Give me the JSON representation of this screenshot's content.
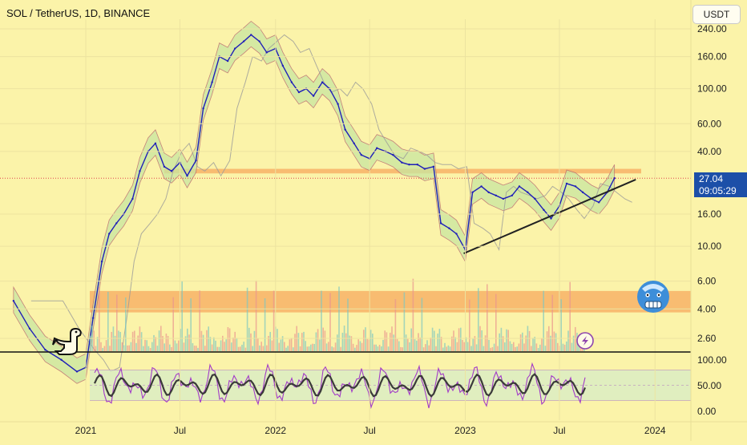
{
  "header": {
    "title": "SOL / TetherUS, 1D, BINANCE"
  },
  "toolbar": {
    "currency_label": "USDT"
  },
  "price_tag": {
    "price": "27.04",
    "countdown": "09:05:29"
  },
  "colors": {
    "background": "#fbf3a9",
    "price_line": "#1f1fb8",
    "cloud_fill": "#c9e6a0",
    "cloud_border": "#b35b6b",
    "zone": "#f7b267",
    "trendline": "#222222",
    "rsi_line": "#a23bc8",
    "rsi_smooth": "#3a3a3a",
    "price_tag_bg": "#1c4fa8"
  },
  "icons": {
    "logo": "dinosaur-icon",
    "lightning": "lightning-icon",
    "emoji": "cold-face-emoji-icon"
  },
  "chart_data": [
    {
      "type": "line",
      "series": [
        {
          "x": [
            "2020-08-15",
            "2020-09-15",
            "2020-10-15",
            "2020-11-15",
            "2020-12-15",
            "2021-01-01",
            "2021-01-15",
            "2021-02-01",
            "2021-02-15",
            "2021-03-01",
            "2021-03-15",
            "2021-04-01",
            "2021-04-15",
            "2021-05-01",
            "2021-05-15",
            "2021-06-01",
            "2021-06-15",
            "2021-07-01",
            "2021-07-15",
            "2021-08-01",
            "2021-08-15",
            "2021-09-01",
            "2021-09-15",
            "2021-10-01",
            "2021-10-15",
            "2021-11-01",
            "2021-11-15",
            "2021-12-01",
            "2021-12-15",
            "2022-01-01",
            "2022-01-15",
            "2022-02-01",
            "2022-02-15",
            "2022-03-01",
            "2022-03-15",
            "2022-04-01",
            "2022-04-15",
            "2022-05-01",
            "2022-05-15",
            "2022-06-01",
            "2022-06-15",
            "2022-07-01",
            "2022-07-15",
            "2022-08-01",
            "2022-08-15",
            "2022-09-01",
            "2022-09-15",
            "2022-10-01",
            "2022-10-15",
            "2022-11-01",
            "2022-11-15",
            "2022-12-01",
            "2022-12-15",
            "2023-01-01",
            "2023-01-15",
            "2023-02-01",
            "2023-02-15",
            "2023-03-01",
            "2023-03-15",
            "2023-04-01",
            "2023-04-15",
            "2023-05-01",
            "2023-05-15",
            "2023-06-01",
            "2023-06-15",
            "2023-07-01",
            "2023-07-15",
            "2023-08-01",
            "2023-08-15",
            "2023-09-01",
            "2023-09-15",
            "2023-10-01",
            "2023-10-15"
          ],
          "values": [
            4.5,
            3.0,
            2.2,
            1.9,
            1.6,
            1.7,
            3.5,
            8.0,
            12.0,
            14.0,
            16.0,
            20.0,
            30.0,
            40.0,
            45.0,
            32.0,
            30.0,
            34.0,
            28.0,
            35.0,
            75.0,
            110.0,
            160.0,
            150.0,
            180.0,
            200.0,
            220.0,
            200.0,
            170.0,
            180.0,
            140.0,
            110.0,
            95.0,
            100.0,
            90.0,
            110.0,
            100.0,
            80.0,
            55.0,
            45.0,
            38.0,
            36.0,
            42.0,
            40.0,
            38.0,
            34.0,
            33.0,
            33.0,
            31.0,
            32.0,
            14.0,
            13.0,
            12.0,
            9.5,
            22.0,
            24.0,
            22.0,
            21.0,
            20.0,
            21.0,
            24.0,
            22.0,
            20.0,
            17.0,
            15.0,
            18.0,
            25.0,
            24.0,
            22.0,
            20.0,
            19.0,
            22.0,
            27.04
          ]
        }
      ],
      "y_scale": "log",
      "yticks": [
        "240.00",
        "160.00",
        "100.00",
        "60.00",
        "40.00",
        "16.00",
        "10.00",
        "6.00",
        "4.00",
        "2.60"
      ],
      "ytick_values": [
        240,
        160,
        100,
        60,
        40,
        16,
        10,
        6,
        4,
        2.6
      ],
      "xticks": [
        "2021",
        "Jul",
        "2022",
        "Jul",
        "2023",
        "Jul",
        "2024"
      ],
      "xtick_dates": [
        "2021-01-01",
        "2021-07-01",
        "2022-01-01",
        "2022-07-01",
        "2023-01-01",
        "2023-07-01",
        "2024-01-01"
      ],
      "zones": [
        [
          29,
          31
        ],
        [
          3.8,
          5.2
        ]
      ],
      "trendline": {
        "from": [
          "2022-12-29",
          9.0
        ],
        "to": [
          "2023-11-25",
          26.5
        ]
      },
      "last_price": 27.04
    },
    {
      "type": "line",
      "yticks": [
        "100.00",
        "50.00",
        "0.00"
      ],
      "ytick_values": [
        100,
        50,
        0
      ],
      "ylim": [
        0,
        100
      ],
      "band": [
        20,
        80
      ]
    }
  ]
}
